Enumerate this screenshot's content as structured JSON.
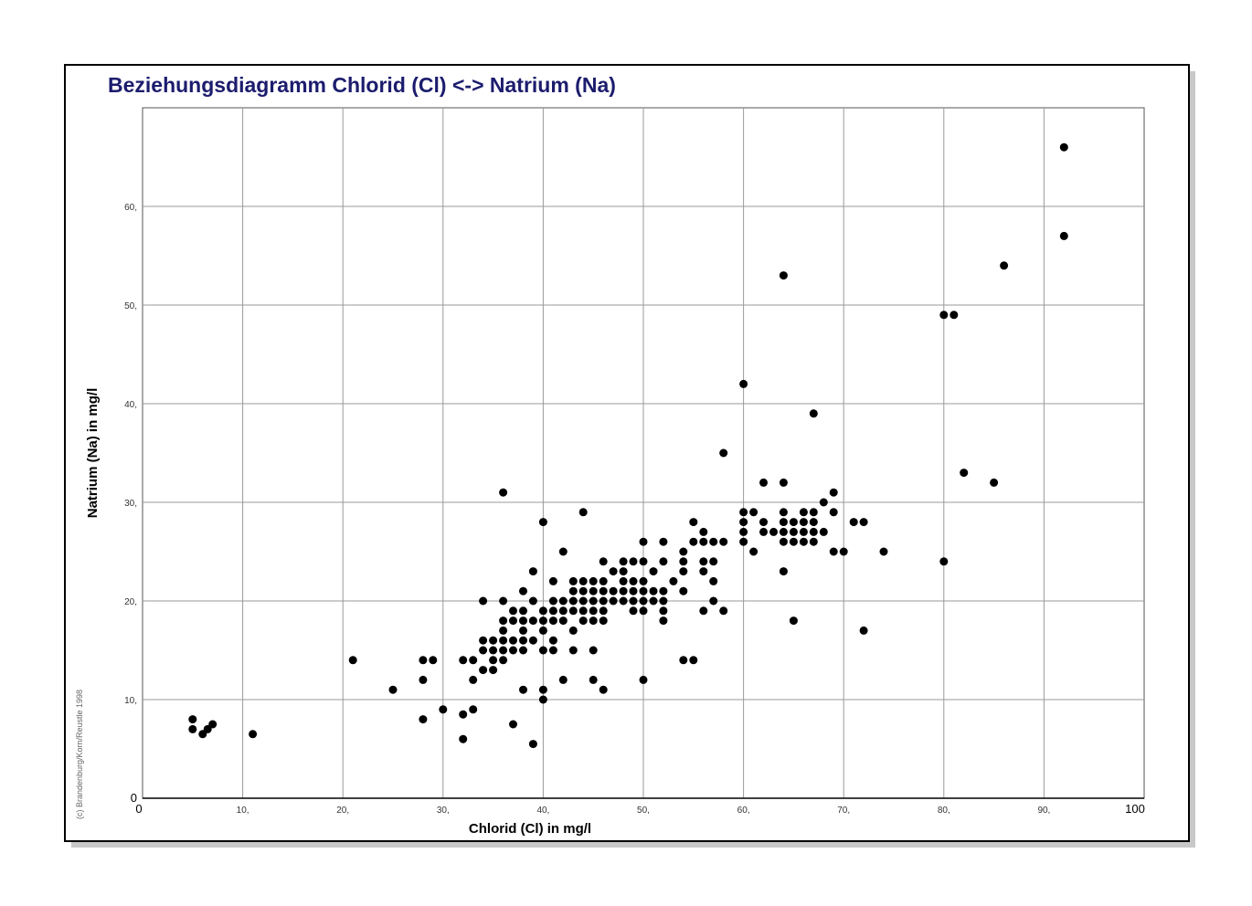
{
  "chart_data": {
    "type": "scatter",
    "title": "Beziehungsdiagramm Chlorid (Cl) <-> Natrium (Na)",
    "xlabel": "Chlorid (Cl) in  mg/l",
    "ylabel": "Natrium (Na) in  mg/l",
    "xlim": [
      0,
      100
    ],
    "ylim": [
      0,
      70
    ],
    "x_ticks": [
      {
        "value": 0,
        "label": "0"
      },
      {
        "value": 10,
        "label": "10,"
      },
      {
        "value": 20,
        "label": "20,"
      },
      {
        "value": 30,
        "label": "30,"
      },
      {
        "value": 40,
        "label": "40,"
      },
      {
        "value": 50,
        "label": "50,"
      },
      {
        "value": 60,
        "label": "60,"
      },
      {
        "value": 70,
        "label": "70,"
      },
      {
        "value": 80,
        "label": "80,"
      },
      {
        "value": 90,
        "label": "90,"
      },
      {
        "value": 100,
        "label": "100"
      }
    ],
    "y_ticks": [
      {
        "value": 0,
        "label": "0"
      },
      {
        "value": 10,
        "label": "10,"
      },
      {
        "value": 20,
        "label": "20,"
      },
      {
        "value": 30,
        "label": "30,"
      },
      {
        "value": 40,
        "label": "40,"
      },
      {
        "value": 50,
        "label": "50,"
      },
      {
        "value": 60,
        "label": "60,"
      }
    ],
    "grid": true,
    "credit": "(c) Brandenburg/Korn/Reustle 1998",
    "points": [
      [
        5,
        8
      ],
      [
        5,
        7
      ],
      [
        6,
        6.5
      ],
      [
        6.5,
        7
      ],
      [
        7,
        7.5
      ],
      [
        11,
        6.5
      ],
      [
        21,
        14
      ],
      [
        25,
        11
      ],
      [
        28,
        14
      ],
      [
        28,
        12
      ],
      [
        28,
        8
      ],
      [
        29,
        14
      ],
      [
        30,
        9
      ],
      [
        32,
        14
      ],
      [
        32,
        8.5
      ],
      [
        32,
        6
      ],
      [
        33,
        14
      ],
      [
        33,
        12
      ],
      [
        33,
        9
      ],
      [
        34,
        20
      ],
      [
        34,
        16
      ],
      [
        34,
        15
      ],
      [
        34,
        13
      ],
      [
        35,
        16
      ],
      [
        35,
        15
      ],
      [
        35,
        14
      ],
      [
        35,
        13
      ],
      [
        36,
        31
      ],
      [
        36,
        20
      ],
      [
        36,
        18
      ],
      [
        36,
        17
      ],
      [
        36,
        16
      ],
      [
        36,
        15
      ],
      [
        36,
        14
      ],
      [
        37,
        19
      ],
      [
        37,
        18
      ],
      [
        37,
        16
      ],
      [
        37,
        15
      ],
      [
        37,
        7.5
      ],
      [
        38,
        21
      ],
      [
        38,
        19
      ],
      [
        38,
        18
      ],
      [
        38,
        17
      ],
      [
        38,
        16
      ],
      [
        38,
        15
      ],
      [
        38,
        11
      ],
      [
        39,
        23
      ],
      [
        39,
        20
      ],
      [
        39,
        18
      ],
      [
        39,
        16
      ],
      [
        39,
        5.5
      ],
      [
        40,
        28
      ],
      [
        40,
        19
      ],
      [
        40,
        18
      ],
      [
        40,
        17
      ],
      [
        40,
        15
      ],
      [
        40,
        11
      ],
      [
        40,
        10
      ],
      [
        41,
        22
      ],
      [
        41,
        20
      ],
      [
        41,
        19
      ],
      [
        41,
        18
      ],
      [
        41,
        16
      ],
      [
        41,
        15
      ],
      [
        42,
        25
      ],
      [
        42,
        20
      ],
      [
        42,
        19
      ],
      [
        42,
        18
      ],
      [
        42,
        12
      ],
      [
        43,
        22
      ],
      [
        43,
        21
      ],
      [
        43,
        20
      ],
      [
        43,
        19
      ],
      [
        43,
        17
      ],
      [
        43,
        15
      ],
      [
        44,
        29
      ],
      [
        44,
        22
      ],
      [
        44,
        21
      ],
      [
        44,
        20
      ],
      [
        44,
        19
      ],
      [
        44,
        18
      ],
      [
        45,
        22
      ],
      [
        45,
        21
      ],
      [
        45,
        20
      ],
      [
        45,
        19
      ],
      [
        45,
        18
      ],
      [
        45,
        15
      ],
      [
        45,
        12
      ],
      [
        46,
        24
      ],
      [
        46,
        22
      ],
      [
        46,
        21
      ],
      [
        46,
        20
      ],
      [
        46,
        19
      ],
      [
        46,
        18
      ],
      [
        46,
        11
      ],
      [
        47,
        23
      ],
      [
        47,
        21
      ],
      [
        47,
        20
      ],
      [
        48,
        24
      ],
      [
        48,
        23
      ],
      [
        48,
        22
      ],
      [
        48,
        21
      ],
      [
        48,
        20
      ],
      [
        49,
        24
      ],
      [
        49,
        22
      ],
      [
        49,
        21
      ],
      [
        49,
        20
      ],
      [
        49,
        19
      ],
      [
        50,
        26
      ],
      [
        50,
        24
      ],
      [
        50,
        22
      ],
      [
        50,
        21
      ],
      [
        50,
        20
      ],
      [
        50,
        19
      ],
      [
        50,
        12
      ],
      [
        51,
        23
      ],
      [
        51,
        21
      ],
      [
        51,
        20
      ],
      [
        52,
        26
      ],
      [
        52,
        24
      ],
      [
        52,
        21
      ],
      [
        52,
        20
      ],
      [
        52,
        19
      ],
      [
        52,
        18
      ],
      [
        53,
        22
      ],
      [
        54,
        25
      ],
      [
        54,
        24
      ],
      [
        54,
        23
      ],
      [
        54,
        21
      ],
      [
        54,
        14
      ],
      [
        55,
        28
      ],
      [
        55,
        26
      ],
      [
        55,
        14
      ],
      [
        56,
        27
      ],
      [
        56,
        26
      ],
      [
        56,
        24
      ],
      [
        56,
        23
      ],
      [
        56,
        19
      ],
      [
        57,
        26
      ],
      [
        57,
        24
      ],
      [
        57,
        22
      ],
      [
        57,
        20
      ],
      [
        58,
        35
      ],
      [
        58,
        26
      ],
      [
        58,
        19
      ],
      [
        60,
        42
      ],
      [
        60,
        29
      ],
      [
        60,
        28
      ],
      [
        60,
        27
      ],
      [
        60,
        26
      ],
      [
        61,
        29
      ],
      [
        61,
        25
      ],
      [
        62,
        32
      ],
      [
        62,
        28
      ],
      [
        62,
        27
      ],
      [
        63,
        27
      ],
      [
        64,
        53
      ],
      [
        64,
        32
      ],
      [
        64,
        29
      ],
      [
        64,
        28
      ],
      [
        64,
        27
      ],
      [
        64,
        26
      ],
      [
        64,
        23
      ],
      [
        65,
        28
      ],
      [
        65,
        27
      ],
      [
        65,
        26
      ],
      [
        65,
        18
      ],
      [
        66,
        29
      ],
      [
        66,
        28
      ],
      [
        66,
        27
      ],
      [
        66,
        26
      ],
      [
        67,
        39
      ],
      [
        67,
        29
      ],
      [
        67,
        28
      ],
      [
        67,
        27
      ],
      [
        67,
        26
      ],
      [
        68,
        30
      ],
      [
        68,
        27
      ],
      [
        69,
        31
      ],
      [
        69,
        29
      ],
      [
        69,
        25
      ],
      [
        70,
        25
      ],
      [
        71,
        28
      ],
      [
        72,
        28
      ],
      [
        72,
        17
      ],
      [
        74,
        25
      ],
      [
        80,
        49
      ],
      [
        80,
        24
      ],
      [
        81,
        49
      ],
      [
        82,
        33
      ],
      [
        85,
        32
      ],
      [
        86,
        54
      ],
      [
        92,
        66
      ],
      [
        92,
        57
      ]
    ]
  }
}
